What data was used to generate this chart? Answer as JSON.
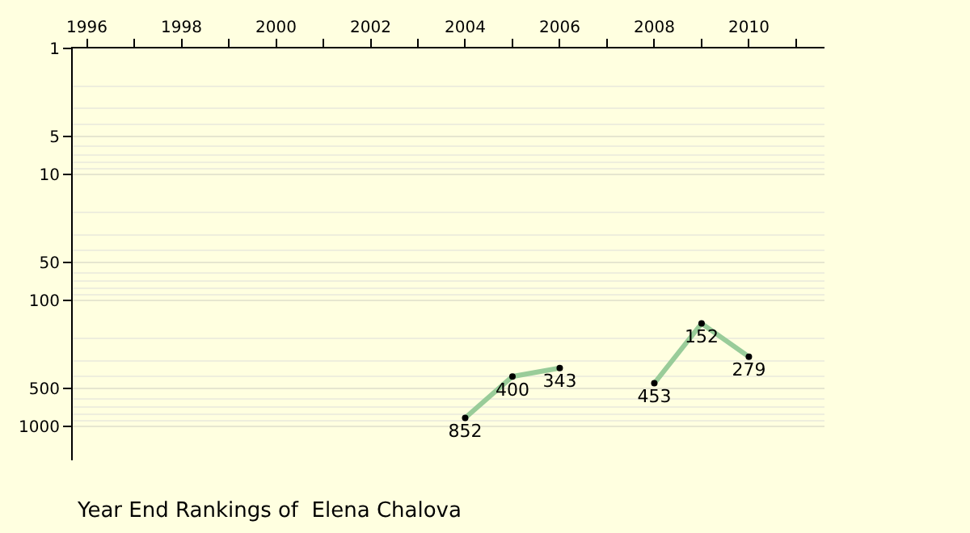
{
  "chart_data": {
    "type": "line",
    "title": "Year End Rankings of  Elena Chalova",
    "x": [
      2004,
      2005,
      2006,
      2007,
      2008,
      2009,
      2010
    ],
    "series": [
      {
        "color": "#99cc99",
        "values": [
          852,
          400,
          343,
          null,
          453,
          152,
          279
        ]
      }
    ],
    "data_labels": true,
    "marker": "circle",
    "line_style": "solid",
    "log": "y",
    "grid": "y",
    "legend": false,
    "xlim": [
      1995.7,
      2011.6
    ],
    "xticks": [
      1996,
      {
        "value": 1997,
        "label": null
      },
      1998,
      {
        "value": 1999,
        "label": null
      },
      2000,
      {
        "value": 2001,
        "label": null
      },
      2002,
      {
        "value": 2003,
        "label": null
      },
      2004,
      {
        "value": 2005,
        "label": null
      },
      2006,
      {
        "value": 2007,
        "label": null
      },
      2008,
      {
        "value": 2009,
        "label": null
      },
      2010,
      {
        "value": 2011,
        "label": null
      }
    ],
    "ylim": [
      1850,
      1
    ],
    "yticks": [
      1,
      5,
      10,
      50,
      100,
      500,
      1000
    ]
  }
}
